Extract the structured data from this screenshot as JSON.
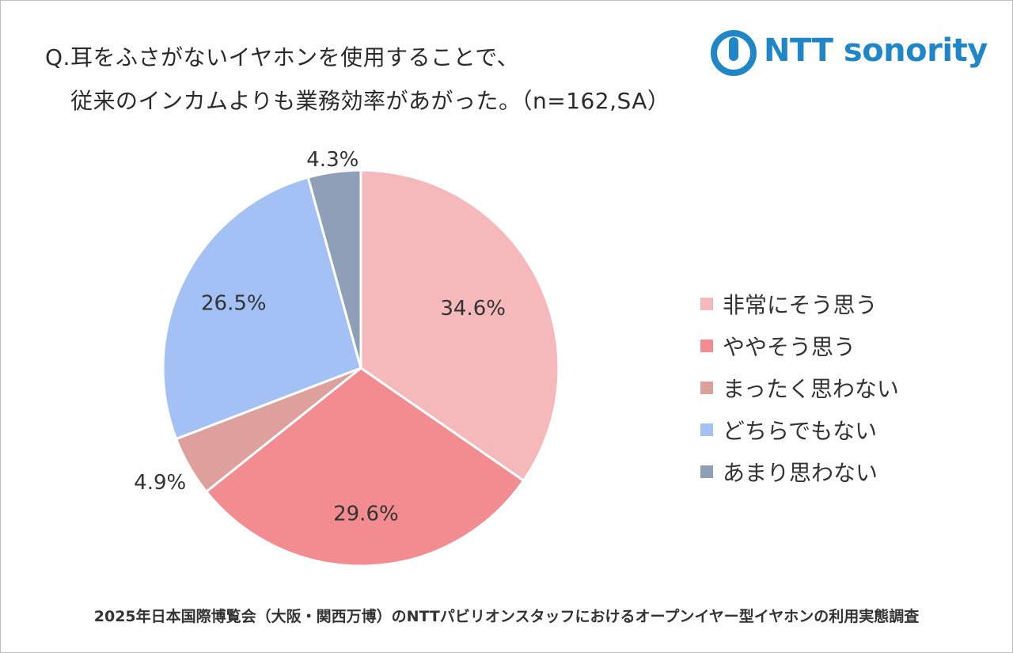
{
  "title": {
    "line1": "Q.耳をふさがないイヤホンを使用することで、",
    "line2": "従来のインカムよりも業務効率があがった。（n=162,SA）"
  },
  "logo": {
    "text": "NTT sonority",
    "color": "#1f86c8"
  },
  "footer": "2025年日本国際博覧会（大阪・関西万博）のNTTパビリオンスタッフにおけるオープンイヤー型イヤホンの利用実態調査",
  "chart_data": {
    "type": "pie",
    "start": "12 o'clock",
    "direction": "clockwise",
    "slices": [
      {
        "label": "非常にそう思う",
        "value": 34.6,
        "value_label": "34.6%",
        "color": "#f6b9bb"
      },
      {
        "label": "ややそう思う",
        "value": 29.6,
        "value_label": "29.6%",
        "color": "#f28c91"
      },
      {
        "label": "まったく思わない",
        "value": 4.9,
        "value_label": "4.9%",
        "color": "#dda09c"
      },
      {
        "label": "どちらでもない",
        "value": 26.5,
        "value_label": "26.5%",
        "color": "#a4c1f6"
      },
      {
        "label": "あまり思わない",
        "value": 4.3,
        "value_label": "4.3%",
        "color": "#8f9fb7"
      }
    ],
    "legend_position": "right"
  }
}
